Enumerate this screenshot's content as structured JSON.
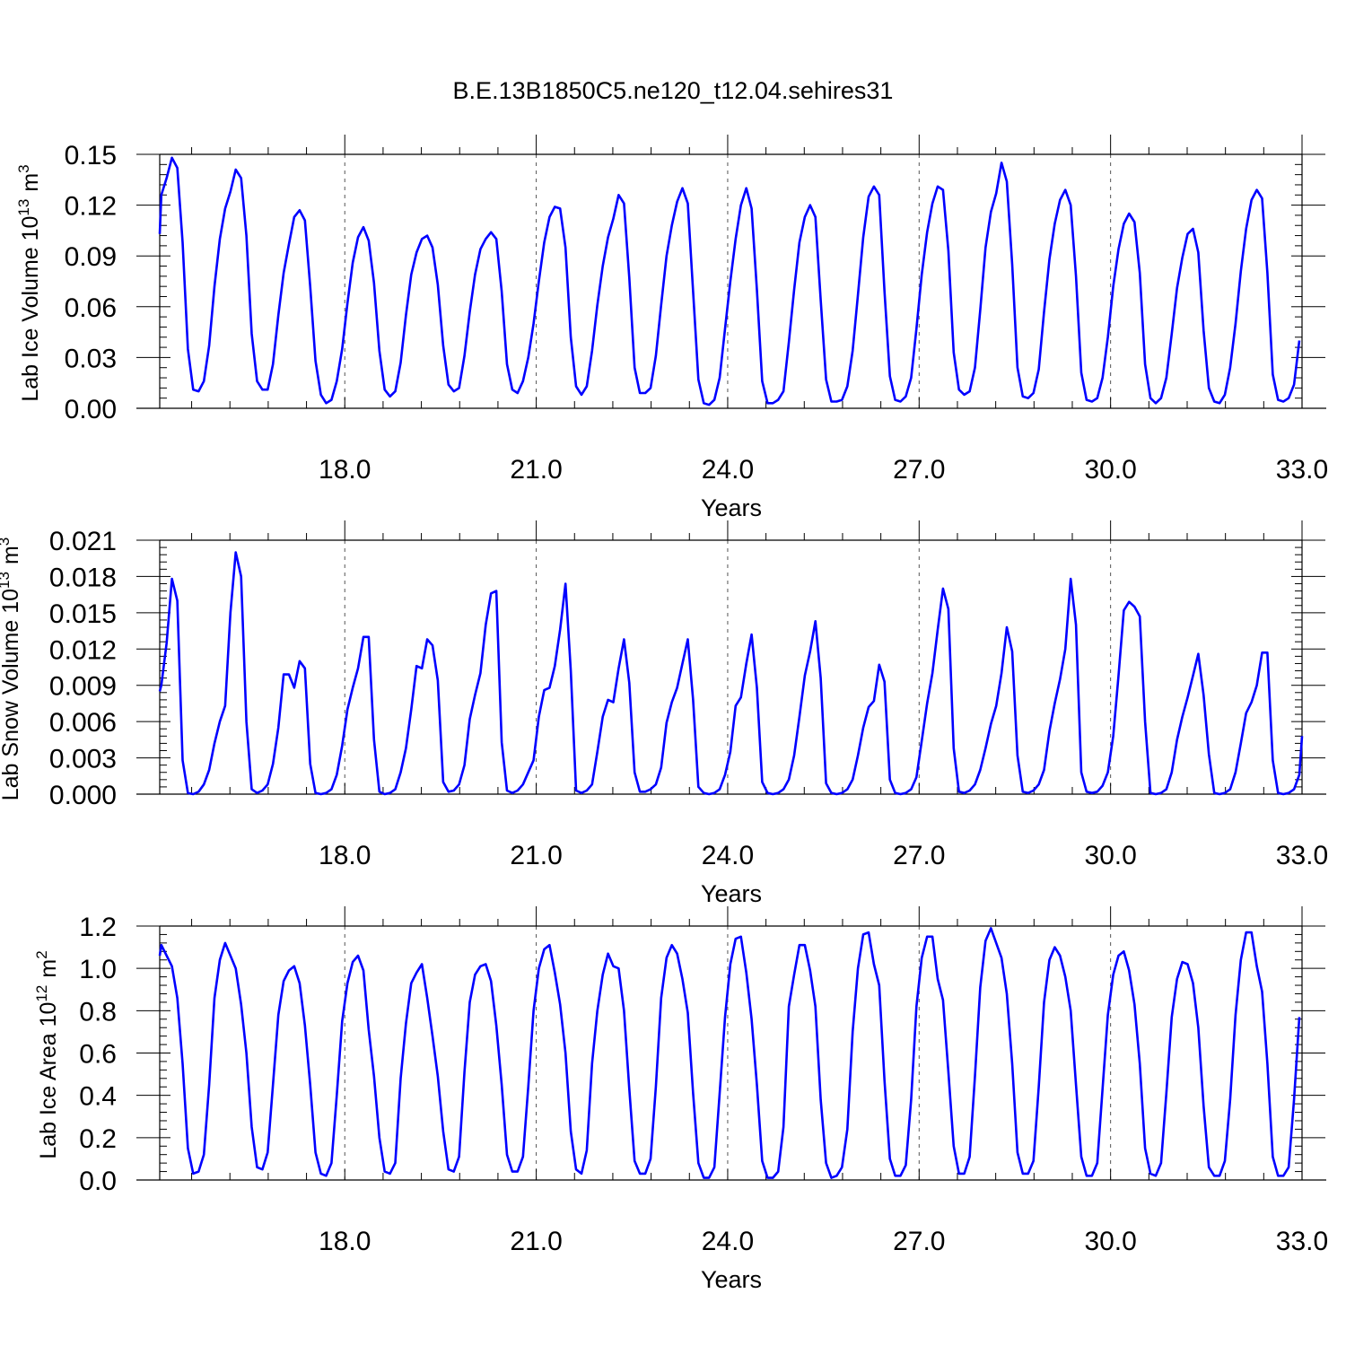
{
  "title": "B.E.13B1850C5.ne120_t12.04.sehires31",
  "line_color": "#0000FF",
  "chart_data": [
    {
      "type": "line",
      "ylabel": "Lab Ice Volume 10",
      "ylabel_exponent": "13",
      "ylabel_unit_base": "m",
      "ylabel_unit_exponent": "3",
      "xlabel": "Years",
      "xlim": [
        15.1,
        33.0
      ],
      "ylim": [
        0.0,
        0.15
      ],
      "xticks": [
        18.0,
        21.0,
        24.0,
        27.0,
        30.0,
        33.0
      ],
      "xtick_labels": [
        "18.0",
        "21.0",
        "24.0",
        "27.0",
        "30.0",
        "33.0"
      ],
      "yticks": [
        0.0,
        0.03,
        0.06,
        0.09,
        0.12,
        0.15
      ],
      "ytick_labels": [
        "0.00",
        "0.03",
        "0.06",
        "0.09",
        "0.12",
        "0.15"
      ],
      "grid": "vertical dashed at major x ticks",
      "series": [
        {
          "x0": 15.0417,
          "dx": 0.08333,
          "values": [
            0.103,
            0.126,
            0.136,
            0.148,
            0.142,
            0.098,
            0.035,
            0.011,
            0.01,
            0.016,
            0.037,
            0.072,
            0.1,
            0.118,
            0.128,
            0.141,
            0.136,
            0.102,
            0.044,
            0.016,
            0.011,
            0.011,
            0.026,
            0.055,
            0.08,
            0.097,
            0.113,
            0.117,
            0.111,
            0.072,
            0.028,
            0.008,
            0.003,
            0.005,
            0.016,
            0.035,
            0.062,
            0.086,
            0.101,
            0.107,
            0.099,
            0.074,
            0.034,
            0.011,
            0.007,
            0.01,
            0.027,
            0.055,
            0.079,
            0.092,
            0.1,
            0.102,
            0.095,
            0.073,
            0.037,
            0.014,
            0.01,
            0.012,
            0.031,
            0.057,
            0.079,
            0.094,
            0.1,
            0.104,
            0.1,
            0.069,
            0.026,
            0.011,
            0.009,
            0.016,
            0.03,
            0.05,
            0.075,
            0.098,
            0.113,
            0.119,
            0.118,
            0.095,
            0.042,
            0.013,
            0.008,
            0.013,
            0.034,
            0.061,
            0.084,
            0.101,
            0.112,
            0.126,
            0.121,
            0.077,
            0.024,
            0.009,
            0.009,
            0.012,
            0.031,
            0.061,
            0.09,
            0.108,
            0.122,
            0.13,
            0.121,
            0.069,
            0.017,
            0.003,
            0.002,
            0.005,
            0.018,
            0.047,
            0.075,
            0.1,
            0.12,
            0.13,
            0.118,
            0.07,
            0.016,
            0.003,
            0.003,
            0.005,
            0.01,
            0.039,
            0.07,
            0.098,
            0.113,
            0.12,
            0.113,
            0.064,
            0.017,
            0.004,
            0.004,
            0.005,
            0.013,
            0.034,
            0.067,
            0.101,
            0.125,
            0.131,
            0.126,
            0.069,
            0.019,
            0.005,
            0.004,
            0.007,
            0.018,
            0.047,
            0.079,
            0.104,
            0.121,
            0.131,
            0.129,
            0.093,
            0.033,
            0.011,
            0.008,
            0.01,
            0.024,
            0.058,
            0.095,
            0.116,
            0.127,
            0.145,
            0.134,
            0.085,
            0.024,
            0.007,
            0.006,
            0.009,
            0.023,
            0.057,
            0.088,
            0.109,
            0.123,
            0.129,
            0.12,
            0.078,
            0.021,
            0.005,
            0.004,
            0.006,
            0.018,
            0.042,
            0.072,
            0.094,
            0.109,
            0.115,
            0.11,
            0.08,
            0.026,
            0.006,
            0.003,
            0.006,
            0.018,
            0.044,
            0.071,
            0.089,
            0.103,
            0.106,
            0.092,
            0.046,
            0.012,
            0.004,
            0.003,
            0.008,
            0.024,
            0.05,
            0.081,
            0.106,
            0.123,
            0.129,
            0.124,
            0.08,
            0.02,
            0.005,
            0.004,
            0.006,
            0.014,
            0.04
          ]
        }
      ]
    },
    {
      "type": "line",
      "ylabel": "Lab Snow Volume 10",
      "ylabel_exponent": "13",
      "ylabel_unit_base": "m",
      "ylabel_unit_exponent": "3",
      "xlabel": "Years",
      "xlim": [
        15.1,
        33.0
      ],
      "ylim": [
        0.0,
        0.021
      ],
      "xticks": [
        18.0,
        21.0,
        24.0,
        27.0,
        30.0,
        33.0
      ],
      "xtick_labels": [
        "18.0",
        "21.0",
        "24.0",
        "27.0",
        "30.0",
        "33.0"
      ],
      "yticks": [
        0.0,
        0.003,
        0.006,
        0.009,
        0.012,
        0.015,
        0.018,
        0.021
      ],
      "ytick_labels": [
        "0.000",
        "0.003",
        "0.006",
        "0.009",
        "0.012",
        "0.015",
        "0.018",
        "0.021"
      ],
      "grid": "vertical dashed at major x ticks",
      "series": [
        {
          "x0": 15.0417,
          "dx": 0.08333,
          "values": [
            0.0085,
            0.009,
            0.0125,
            0.0178,
            0.016,
            0.0028,
            0.0001,
            0.0,
            0.0002,
            0.0008,
            0.002,
            0.0042,
            0.006,
            0.0073,
            0.015,
            0.02,
            0.018,
            0.006,
            0.0004,
            0.0001,
            0.0003,
            0.0008,
            0.0025,
            0.0055,
            0.0099,
            0.0099,
            0.0088,
            0.011,
            0.0104,
            0.0025,
            0.0001,
            0.0,
            0.0001,
            0.0004,
            0.0016,
            0.004,
            0.007,
            0.0088,
            0.0104,
            0.013,
            0.013,
            0.0045,
            0.0002,
            0.0,
            0.0001,
            0.0004,
            0.0018,
            0.0038,
            0.007,
            0.0106,
            0.0104,
            0.0128,
            0.0123,
            0.0094,
            0.001,
            0.0002,
            0.0003,
            0.0008,
            0.0024,
            0.0062,
            0.0082,
            0.01,
            0.014,
            0.0166,
            0.0168,
            0.0043,
            0.0003,
            0.0001,
            0.0003,
            0.0008,
            0.0018,
            0.0028,
            0.0064,
            0.0086,
            0.0088,
            0.0106,
            0.0136,
            0.0174,
            0.0102,
            0.0003,
            0.0001,
            0.0003,
            0.0008,
            0.0035,
            0.0064,
            0.0078,
            0.0076,
            0.0104,
            0.0128,
            0.0092,
            0.0018,
            0.0002,
            0.0002,
            0.0004,
            0.0008,
            0.0022,
            0.0059,
            0.0076,
            0.0088,
            0.0108,
            0.0128,
            0.0078,
            0.0006,
            0.0001,
            0.0,
            0.0001,
            0.0004,
            0.0016,
            0.0035,
            0.0073,
            0.008,
            0.0108,
            0.0132,
            0.0088,
            0.001,
            0.0001,
            0.0,
            0.0001,
            0.0004,
            0.0012,
            0.0032,
            0.0064,
            0.0098,
            0.0118,
            0.0143,
            0.0096,
            0.0009,
            0.0001,
            0.0,
            0.0001,
            0.0004,
            0.0012,
            0.0032,
            0.0055,
            0.0072,
            0.0077,
            0.0107,
            0.0093,
            0.0012,
            0.0001,
            0.0,
            0.0001,
            0.0004,
            0.0014,
            0.0044,
            0.0075,
            0.01,
            0.0136,
            0.017,
            0.0153,
            0.0038,
            0.0002,
            0.0001,
            0.0003,
            0.0008,
            0.002,
            0.0038,
            0.0058,
            0.0073,
            0.01,
            0.0138,
            0.0118,
            0.0032,
            0.0002,
            0.0001,
            0.0003,
            0.0008,
            0.002,
            0.0052,
            0.0075,
            0.0095,
            0.012,
            0.0178,
            0.014,
            0.0018,
            0.0002,
            0.0001,
            0.0002,
            0.0007,
            0.0018,
            0.0048,
            0.0098,
            0.0152,
            0.0159,
            0.0155,
            0.0147,
            0.006,
            0.0001,
            0.0,
            0.0001,
            0.0004,
            0.0018,
            0.0045,
            0.0064,
            0.008,
            0.0098,
            0.0116,
            0.0082,
            0.0033,
            0.0001,
            0.0,
            0.0001,
            0.0004,
            0.0018,
            0.0042,
            0.0067,
            0.0076,
            0.009,
            0.0117,
            0.0117,
            0.0028,
            0.0001,
            0.0,
            0.0001,
            0.0004,
            0.0016,
            0.0048
          ]
        }
      ]
    },
    {
      "type": "line",
      "ylabel": "Lab Ice Area 10",
      "ylabel_exponent": "12",
      "ylabel_unit_base": "m",
      "ylabel_unit_exponent": "2",
      "xlabel": "Years",
      "xlim": [
        15.1,
        33.0
      ],
      "ylim": [
        0.0,
        1.2
      ],
      "xticks": [
        18.0,
        21.0,
        24.0,
        27.0,
        30.0,
        33.0
      ],
      "xtick_labels": [
        "18.0",
        "21.0",
        "24.0",
        "27.0",
        "30.0",
        "33.0"
      ],
      "yticks": [
        0.0,
        0.2,
        0.4,
        0.6,
        0.8,
        1.0,
        1.2
      ],
      "ytick_labels": [
        "0.0",
        "0.2",
        "0.4",
        "0.6",
        "0.8",
        "1.0",
        "1.2"
      ],
      "grid": "vertical dashed at major x ticks",
      "series": [
        {
          "x0": 15.0417,
          "dx": 0.08333,
          "values": [
            1.06,
            1.11,
            1.06,
            1.01,
            0.86,
            0.55,
            0.15,
            0.03,
            0.04,
            0.12,
            0.45,
            0.86,
            1.04,
            1.12,
            1.06,
            1.0,
            0.83,
            0.6,
            0.25,
            0.06,
            0.05,
            0.13,
            0.45,
            0.78,
            0.94,
            0.99,
            1.01,
            0.93,
            0.73,
            0.45,
            0.13,
            0.03,
            0.02,
            0.08,
            0.4,
            0.75,
            0.93,
            1.03,
            1.06,
            0.99,
            0.71,
            0.49,
            0.2,
            0.04,
            0.03,
            0.08,
            0.48,
            0.74,
            0.93,
            0.98,
            1.02,
            0.86,
            0.68,
            0.49,
            0.23,
            0.05,
            0.04,
            0.11,
            0.51,
            0.84,
            0.97,
            1.01,
            1.02,
            0.94,
            0.73,
            0.45,
            0.12,
            0.04,
            0.04,
            0.11,
            0.44,
            0.8,
            1.0,
            1.09,
            1.11,
            0.98,
            0.83,
            0.6,
            0.23,
            0.05,
            0.03,
            0.14,
            0.55,
            0.8,
            0.97,
            1.07,
            1.01,
            1.0,
            0.8,
            0.43,
            0.09,
            0.03,
            0.03,
            0.1,
            0.44,
            0.86,
            1.05,
            1.11,
            1.07,
            0.95,
            0.79,
            0.41,
            0.08,
            0.01,
            0.01,
            0.06,
            0.41,
            0.77,
            1.02,
            1.14,
            1.15,
            0.98,
            0.76,
            0.45,
            0.09,
            0.01,
            0.01,
            0.04,
            0.25,
            0.82,
            0.97,
            1.11,
            1.11,
            0.99,
            0.82,
            0.38,
            0.08,
            0.01,
            0.02,
            0.06,
            0.24,
            0.7,
            1.0,
            1.16,
            1.17,
            1.02,
            0.92,
            0.47,
            0.1,
            0.02,
            0.02,
            0.07,
            0.38,
            0.82,
            1.05,
            1.15,
            1.15,
            0.95,
            0.85,
            0.51,
            0.16,
            0.03,
            0.03,
            0.11,
            0.49,
            0.91,
            1.13,
            1.19,
            1.12,
            1.05,
            0.88,
            0.55,
            0.13,
            0.03,
            0.03,
            0.09,
            0.44,
            0.84,
            1.04,
            1.1,
            1.06,
            0.96,
            0.8,
            0.45,
            0.11,
            0.02,
            0.02,
            0.08,
            0.43,
            0.78,
            0.97,
            1.06,
            1.08,
            0.99,
            0.83,
            0.55,
            0.15,
            0.03,
            0.02,
            0.08,
            0.41,
            0.77,
            0.95,
            1.03,
            1.02,
            0.93,
            0.72,
            0.35,
            0.06,
            0.02,
            0.02,
            0.09,
            0.38,
            0.78,
            1.04,
            1.17,
            1.17,
            1.01,
            0.89,
            0.55,
            0.11,
            0.02,
            0.02,
            0.06,
            0.38,
            0.77
          ]
        }
      ]
    }
  ]
}
